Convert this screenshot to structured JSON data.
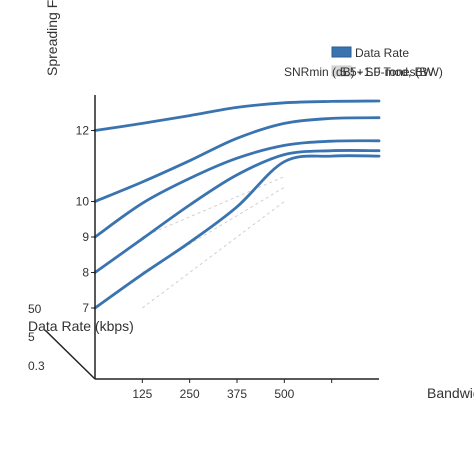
{
  "chart_data": {
    "type": "line",
    "title": "",
    "xlabel": "Bandwidth",
    "ylabel": "Spreading F",
    "secondary_axis_label": "Data Rate (kbps)",
    "secondary_axis_ticks": [
      "50",
      "5",
      "0.3"
    ],
    "x_ticks": [
      "125",
      "250",
      "375",
      "500"
    ],
    "xlim": [
      0,
      750
    ],
    "y_ticks": [
      {
        "label": "12",
        "value": 12
      },
      {
        "label": "10",
        "value": 10
      },
      {
        "label": "9",
        "value": 9
      },
      {
        "label": "8",
        "value": 8
      },
      {
        "label": "7",
        "value": 7
      }
    ],
    "ylim": [
      5,
      13
    ],
    "legend": {
      "placement": "top-right",
      "items": [
        {
          "label": "Data Rate",
          "color": "#3a74b0"
        },
        {
          "label": "SNRmin (dB) - SF-mod, BW",
          "color": "#d9d9d9"
        }
      ],
      "overlapping_label": "5.5+1.0 Tones(BW)"
    },
    "series_color": "#3a74b0",
    "reference_color": "#d0d0d0",
    "series": [
      {
        "x": [
          0,
          125,
          250,
          375,
          500,
          625,
          750
        ],
        "y": [
          12,
          12.2,
          12.42,
          12.65,
          12.78,
          12.82,
          12.83
        ]
      },
      {
        "x": [
          0,
          125,
          250,
          375,
          500,
          625,
          750
        ],
        "y": [
          10,
          10.55,
          11.15,
          11.78,
          12.2,
          12.34,
          12.36
        ]
      },
      {
        "x": [
          0,
          125,
          250,
          375,
          500,
          625,
          750
        ],
        "y": [
          9,
          9.95,
          10.65,
          11.22,
          11.58,
          11.7,
          11.71
        ]
      },
      {
        "x": [
          0,
          125,
          250,
          375,
          500,
          625,
          750
        ],
        "y": [
          8,
          8.95,
          9.9,
          10.75,
          11.32,
          11.43,
          11.43
        ]
      },
      {
        "x": [
          0,
          125,
          250,
          375,
          500,
          625,
          750
        ],
        "y": [
          7,
          7.95,
          8.85,
          9.85,
          11.12,
          11.28,
          11.28
        ]
      }
    ],
    "reference_lines": [
      {
        "x": [
          125,
          500
        ],
        "y": [
          9,
          10.7
        ]
      },
      {
        "x": [
          125,
          500
        ],
        "y": [
          8,
          10.4
        ]
      },
      {
        "x": [
          125,
          500
        ],
        "y": [
          7,
          10.0
        ]
      }
    ]
  }
}
